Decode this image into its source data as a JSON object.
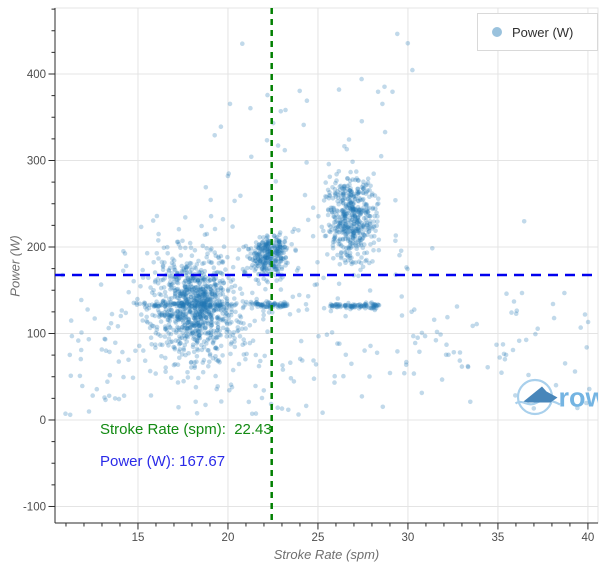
{
  "chart_data": {
    "type": "scatter",
    "title": "",
    "xlabel": "Stroke Rate (spm)",
    "ylabel": "Power (W)",
    "xlim": [
      10.39,
      40.56
    ],
    "ylim": [
      -119.1,
      476.3
    ],
    "x_major_ticks": [
      15,
      20,
      25,
      30,
      35,
      40
    ],
    "y_major_ticks": [
      -100,
      0,
      100,
      200,
      300,
      400
    ],
    "x_minor_step": 1,
    "y_minor_step": 25,
    "grid": true,
    "grid_color": "#e4e4e4",
    "axis_color": "#2b2b2b",
    "tick_label_color": "#4d4d4d",
    "legend": {
      "position": "top-right",
      "entries": [
        {
          "label": "Power (W)",
          "color": "#1f77b4"
        }
      ]
    },
    "point_style": {
      "color": "#1f77b4",
      "opacity": 0.28,
      "radius": 2.3
    },
    "n_points_approx": 2300,
    "clusters": [
      {
        "name": "low-rate-main",
        "type": "gauss",
        "n": 680,
        "cx": 18.15,
        "cy": 130,
        "sdx": 1.25,
        "sdy": 33
      },
      {
        "name": "low-rate-core",
        "type": "gauss",
        "n": 250,
        "cx": 18.2,
        "cy": 133,
        "sdx": 0.7,
        "sdy": 17
      },
      {
        "name": "mid-rate-cluster",
        "type": "gauss",
        "n": 300,
        "cx": 22.3,
        "cy": 190,
        "sdx": 0.55,
        "sdy": 12
      },
      {
        "name": "high-rate-cluster",
        "type": "gauss",
        "n": 500,
        "cx": 26.85,
        "cy": 233,
        "sdx": 0.72,
        "sdy": 26
      },
      {
        "name": "band-left",
        "type": "band",
        "n": 100,
        "x_range": [
          14.8,
          23.3
        ],
        "cy": 133,
        "sdy": 1.6
      },
      {
        "name": "band-mid-dense",
        "type": "band",
        "n": 45,
        "x_range": [
          21.6,
          23.4
        ],
        "cy": 133,
        "sdy": 1.6
      },
      {
        "name": "band-right-dense",
        "type": "band",
        "n": 90,
        "x_range": [
          25.6,
          28.4
        ],
        "cy": 132,
        "sdy": 1.6
      },
      {
        "name": "background",
        "type": "gauss",
        "n": 280,
        "cx": 20.6,
        "cy": 105,
        "sdx": 4.3,
        "sdy": 80
      },
      {
        "name": "top-sparse",
        "type": "band",
        "n": 30,
        "x_range": [
          18.5,
          30.5
        ],
        "cy": 350,
        "sdy": 55
      },
      {
        "name": "right-sparse",
        "type": "band",
        "n": 65,
        "x_range": [
          29.5,
          40.3
        ],
        "cy": 95,
        "sdy": 38
      },
      {
        "name": "left-sparse",
        "type": "band",
        "n": 22,
        "x_range": [
          10.7,
          14.6
        ],
        "cy": 72,
        "sdy": 35
      }
    ],
    "reference_lines": [
      {
        "orientation": "vertical",
        "value": 22.43,
        "color": "#008000",
        "dash": "dashed"
      },
      {
        "orientation": "horizontal",
        "value": 167.67,
        "color": "#0000ee",
        "dash": "dashed"
      }
    ],
    "annotations": [
      {
        "text": "Stroke Rate (spm):  22.43",
        "color": "#128a12",
        "x": 12.9,
        "y": -16
      },
      {
        "text": "Power (W): 167.67",
        "color": "#2a2ae8",
        "x": 12.9,
        "y": -53
      }
    ],
    "watermark": {
      "text": "rows",
      "text_color": "#74b4e2",
      "accent_color": "#4886ba",
      "outline_color": "#a9d0ec"
    }
  }
}
